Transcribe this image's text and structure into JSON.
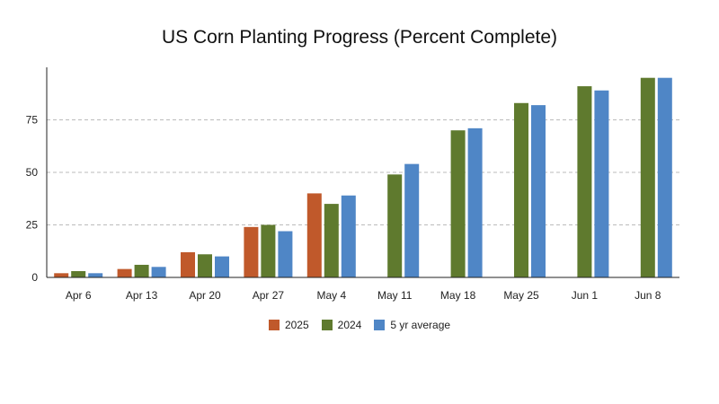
{
  "chart_data": {
    "type": "bar",
    "title": "US Corn Planting Progress (Percent Complete)",
    "xlabel": "",
    "ylabel": "",
    "categories": [
      "Apr 6",
      "Apr 13",
      "Apr 20",
      "Apr 27",
      "May 4",
      "May 11",
      "May 18",
      "May 25",
      "Jun 1",
      "Jun 8"
    ],
    "ylim": [
      0,
      100
    ],
    "yticks": [
      0,
      25,
      50,
      75
    ],
    "grid": true,
    "legend_position": "bottom",
    "series": [
      {
        "name": "2025",
        "color": "#c0592b",
        "values": [
          2,
          4,
          12,
          24,
          40,
          null,
          null,
          null,
          null,
          null
        ]
      },
      {
        "name": "2024",
        "color": "#5f7a2e",
        "values": [
          3,
          6,
          11,
          25,
          35,
          49,
          70,
          83,
          91,
          95
        ]
      },
      {
        "name": "5 yr average",
        "color": "#4f86c6",
        "values": [
          2,
          5,
          10,
          22,
          39,
          54,
          71,
          82,
          89,
          95
        ]
      }
    ]
  }
}
